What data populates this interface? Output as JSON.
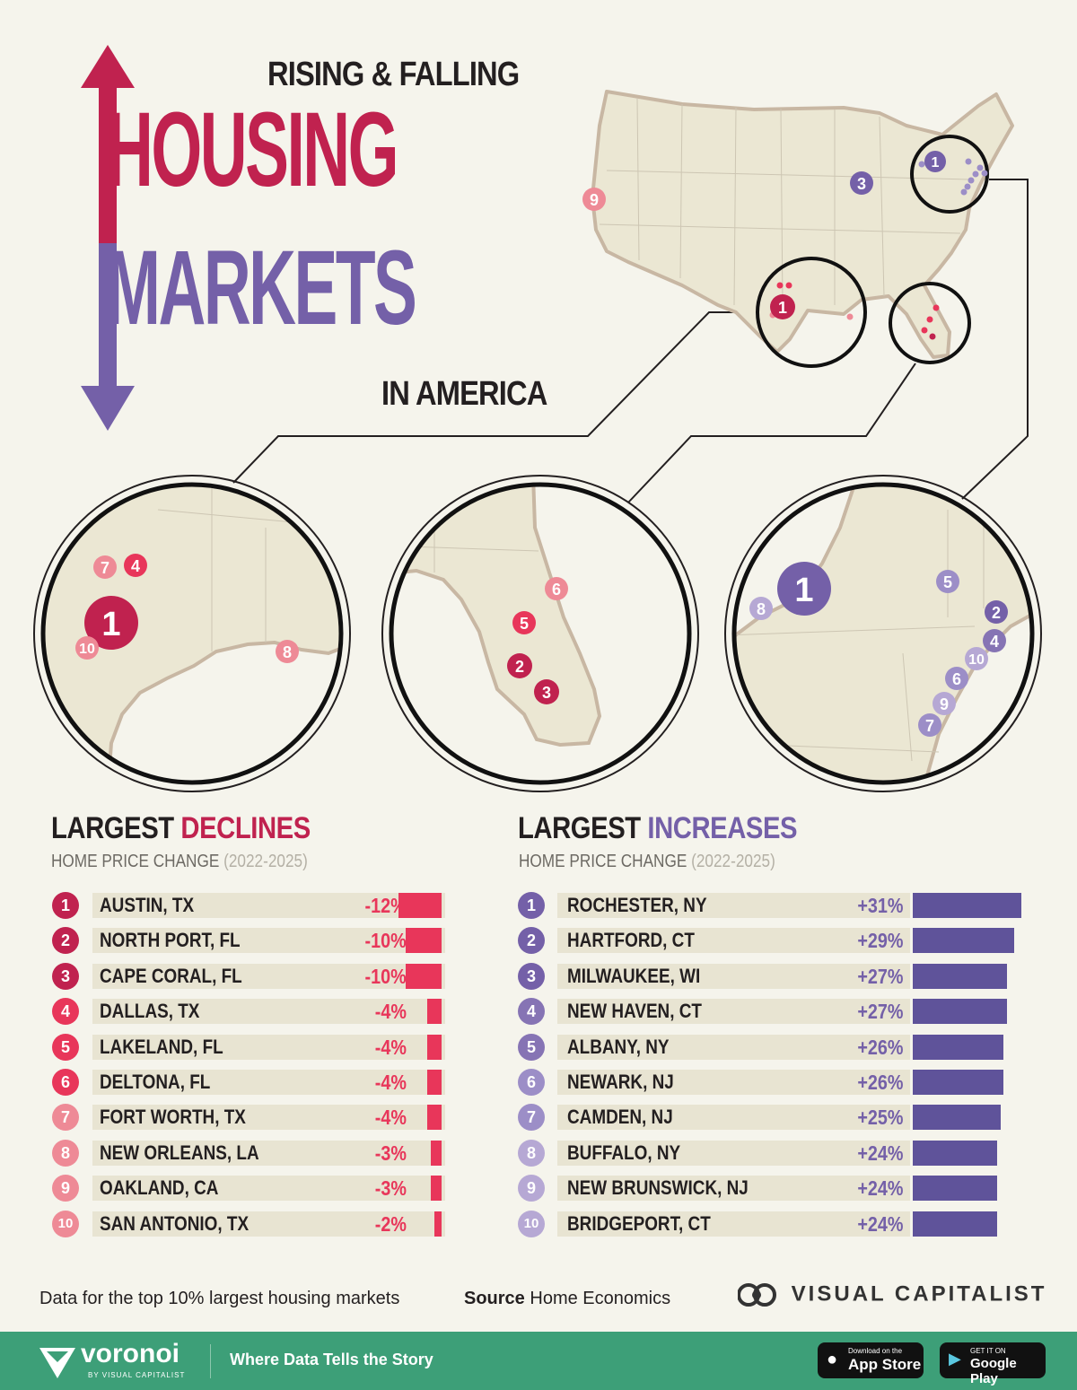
{
  "header": {
    "title_top": "RISING & FALLING",
    "title_word1": "HOUSING",
    "title_word2": "MARKETS",
    "title_bottom": "IN AMERICA"
  },
  "colors": {
    "decline_dark": "#c0224f",
    "decline_light": "#ee8a96",
    "increase_dark": "#7460a8",
    "increase_light": "#b6a8d4",
    "bar_decline": "#e8365a",
    "bar_increase": "#5f539a",
    "row_bg": "#e8e4d2",
    "map_fill": "#ebe7d3",
    "map_stroke": "#c8b7a3",
    "footer_green": "#3d9f78"
  },
  "map_labels": {
    "us_pins": [
      "9",
      "1",
      "3",
      "1"
    ],
    "texas": [
      "7",
      "4",
      "1",
      "10",
      "8"
    ],
    "florida": [
      "6",
      "5",
      "2",
      "3"
    ],
    "northeast": [
      "1",
      "8",
      "5",
      "2",
      "4",
      "10",
      "6",
      "9",
      "7"
    ]
  },
  "chart_data": [
    {
      "type": "bar",
      "title": "LARGEST DECLINES",
      "title_prefix": "LARGEST",
      "title_emph": "DECLINES",
      "subtitle": "HOME PRICE CHANGE",
      "period": "(2022-2025)",
      "categories": [
        "AUSTIN, TX",
        "NORTH PORT, FL",
        "CAPE CORAL, FL",
        "DALLAS, TX",
        "LAKELAND, FL",
        "DELTONA, FL",
        "FORT WORTH, TX",
        "NEW ORLEANS, LA",
        "OAKLAND, CA",
        "SAN ANTONIO, TX"
      ],
      "ranks": [
        "1",
        "2",
        "3",
        "4",
        "5",
        "6",
        "7",
        "8",
        "9",
        "10"
      ],
      "values": [
        -12,
        -10,
        -10,
        -4,
        -4,
        -4,
        -4,
        -3,
        -3,
        -2
      ],
      "labels": [
        "-12%",
        "-10%",
        "-10%",
        "-4%",
        "-4%",
        "-4%",
        "-4%",
        "-3%",
        "-3%",
        "-2%"
      ]
    },
    {
      "type": "bar",
      "title": "LARGEST INCREASES",
      "title_prefix": "LARGEST",
      "title_emph": "INCREASES",
      "subtitle": "HOME PRICE CHANGE",
      "period": "(2022-2025)",
      "categories": [
        "ROCHESTER, NY",
        "HARTFORD, CT",
        "MILWAUKEE, WI",
        "NEW HAVEN, CT",
        "ALBANY, NY",
        "NEWARK, NJ",
        "CAMDEN, NJ",
        "BUFFALO, NY",
        "NEW BRUNSWICK, NJ",
        "BRIDGEPORT, CT"
      ],
      "ranks": [
        "1",
        "2",
        "3",
        "4",
        "5",
        "6",
        "7",
        "8",
        "9",
        "10"
      ],
      "values": [
        31,
        29,
        27,
        27,
        26,
        26,
        25,
        24,
        24,
        24
      ],
      "labels": [
        "+31%",
        "+29%",
        "+27%",
        "+27%",
        "+26%",
        "+26%",
        "+25%",
        "+24%",
        "+24%",
        "+24%"
      ]
    }
  ],
  "footer": {
    "note": "Data for the top 10% largest housing markets",
    "source_label": "Source",
    "source_value": "Home Economics",
    "brand": "VISUAL CAPITALIST",
    "voronoi_name": "voronoi",
    "voronoi_by": "BY VISUAL CAPITALIST",
    "tagline": "Where Data Tells the Story",
    "appstore_small": "Download on the",
    "appstore_big": "App Store",
    "gplay_small": "GET IT ON",
    "gplay_big": "Google Play"
  }
}
